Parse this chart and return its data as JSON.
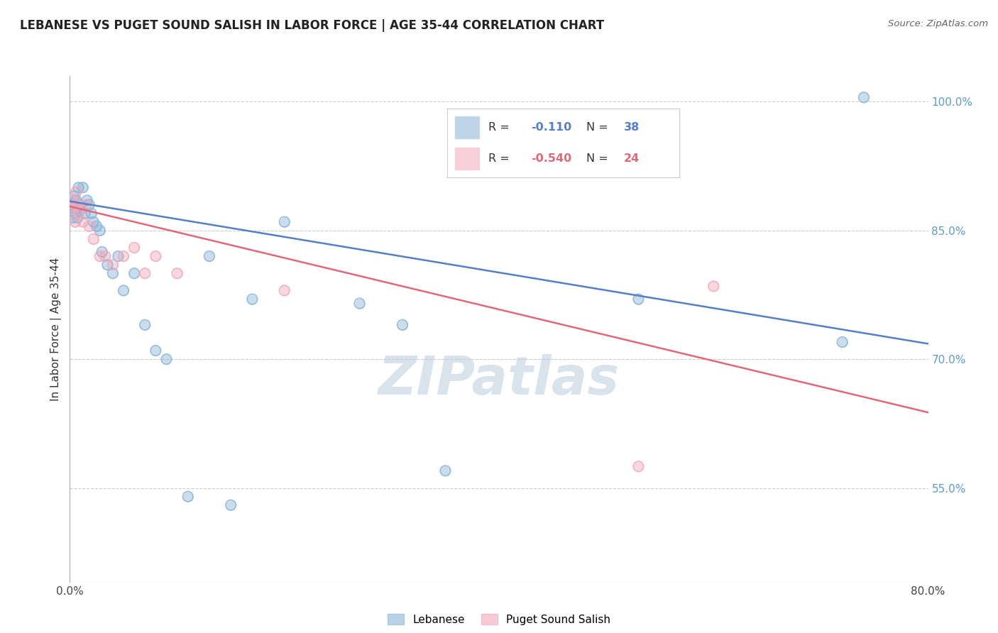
{
  "title": "LEBANESE VS PUGET SOUND SALISH IN LABOR FORCE | AGE 35-44 CORRELATION CHART",
  "source": "Source: ZipAtlas.com",
  "ylabel": "In Labor Force | Age 35-44",
  "xlim": [
    0.0,
    0.8
  ],
  "ylim": [
    0.44,
    1.03
  ],
  "xtick_positions": [
    0.0,
    0.1,
    0.2,
    0.3,
    0.4,
    0.5,
    0.6,
    0.7,
    0.8
  ],
  "xticklabels": [
    "0.0%",
    "",
    "",
    "",
    "",
    "",
    "",
    "",
    "80.0%"
  ],
  "yticks_right": [
    0.55,
    0.7,
    0.85,
    1.0
  ],
  "ytick_labels_right": [
    "55.0%",
    "70.0%",
    "85.0%",
    "100.0%"
  ],
  "blue_R": "-0.110",
  "blue_N": "38",
  "pink_R": "-0.540",
  "pink_N": "24",
  "blue_color": "#8ab4d8",
  "pink_color": "#f2a8b8",
  "blue_line_color": "#5580c8",
  "pink_line_color": "#e06878",
  "watermark": "ZIPatlas",
  "legend_blue_label": "Lebanese",
  "legend_pink_label": "Puget Sound Salish",
  "blue_trendline_x": [
    0.0,
    0.8
  ],
  "blue_trendline_y": [
    0.884,
    0.718
  ],
  "pink_trendline_x": [
    0.0,
    0.8
  ],
  "pink_trendline_y": [
    0.878,
    0.638
  ],
  "blue_x": [
    0.001,
    0.002,
    0.003,
    0.004,
    0.005,
    0.006,
    0.007,
    0.008,
    0.009,
    0.01,
    0.012,
    0.014,
    0.016,
    0.018,
    0.02,
    0.022,
    0.025,
    0.028,
    0.03,
    0.035,
    0.04,
    0.045,
    0.05,
    0.06,
    0.07,
    0.08,
    0.09,
    0.11,
    0.13,
    0.15,
    0.17,
    0.2,
    0.27,
    0.31,
    0.35,
    0.53,
    0.72,
    0.74
  ],
  "blue_y": [
    0.875,
    0.88,
    0.865,
    0.89,
    0.87,
    0.885,
    0.865,
    0.9,
    0.88,
    0.875,
    0.9,
    0.87,
    0.885,
    0.88,
    0.87,
    0.86,
    0.855,
    0.85,
    0.825,
    0.81,
    0.8,
    0.82,
    0.78,
    0.8,
    0.74,
    0.71,
    0.7,
    0.54,
    0.82,
    0.53,
    0.77,
    0.86,
    0.765,
    0.74,
    0.57,
    0.77,
    0.72,
    1.005
  ],
  "pink_x": [
    0.001,
    0.002,
    0.003,
    0.004,
    0.005,
    0.006,
    0.007,
    0.008,
    0.01,
    0.012,
    0.015,
    0.018,
    0.022,
    0.028,
    0.033,
    0.04,
    0.05,
    0.06,
    0.07,
    0.08,
    0.1,
    0.2,
    0.53,
    0.6
  ],
  "pink_y": [
    0.875,
    0.885,
    0.875,
    0.88,
    0.86,
    0.895,
    0.88,
    0.87,
    0.875,
    0.86,
    0.88,
    0.855,
    0.84,
    0.82,
    0.82,
    0.81,
    0.82,
    0.83,
    0.8,
    0.82,
    0.8,
    0.78,
    0.575,
    0.785
  ]
}
